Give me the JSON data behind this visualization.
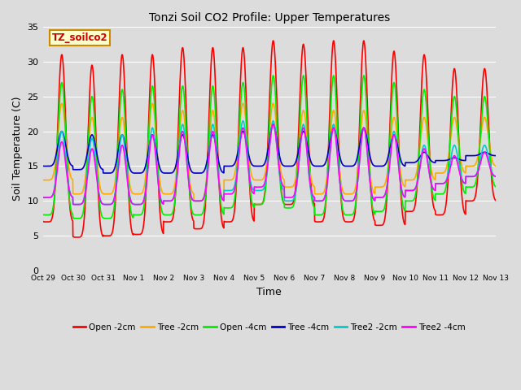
{
  "title": "Tonzi Soil CO2 Profile: Upper Temperatures",
  "xlabel": "Time",
  "ylabel": "Soil Temperature (C)",
  "ylim": [
    0,
    35
  ],
  "background_color": "#dcdcdc",
  "plot_bg_color": "#dcdcdc",
  "grid_color": "#ffffff",
  "annotation_text": "TZ_soilco2",
  "annotation_bg": "#ffffcc",
  "annotation_border": "#cc8800",
  "series": [
    {
      "name": "Open -2cm",
      "color": "#ff0000",
      "lw": 1.2
    },
    {
      "name": "Tree -2cm",
      "color": "#ffaa00",
      "lw": 1.2
    },
    {
      "name": "Open -4cm",
      "color": "#00ee00",
      "lw": 1.2
    },
    {
      "name": "Tree -4cm",
      "color": "#0000cc",
      "lw": 1.2
    },
    {
      "name": "Tree2 -2cm",
      "color": "#00cccc",
      "lw": 1.2
    },
    {
      "name": "Tree2 -4cm",
      "color": "#ff00ff",
      "lw": 1.2
    }
  ],
  "xtick_labels": [
    "Oct 29",
    "Oct 30",
    "Oct 31",
    "Nov 1",
    "Nov 2",
    "Nov 3",
    "Nov 4",
    "Nov 5",
    "Nov 6",
    "Nov 7",
    "Nov 8",
    "Nov 9",
    "Nov 10",
    "Nov 11",
    "Nov 12",
    "Nov 13"
  ],
  "xtick_positions": [
    0,
    1,
    2,
    3,
    4,
    5,
    6,
    7,
    8,
    9,
    10,
    11,
    12,
    13,
    14,
    15
  ],
  "num_days": 15,
  "points_per_day": 144
}
